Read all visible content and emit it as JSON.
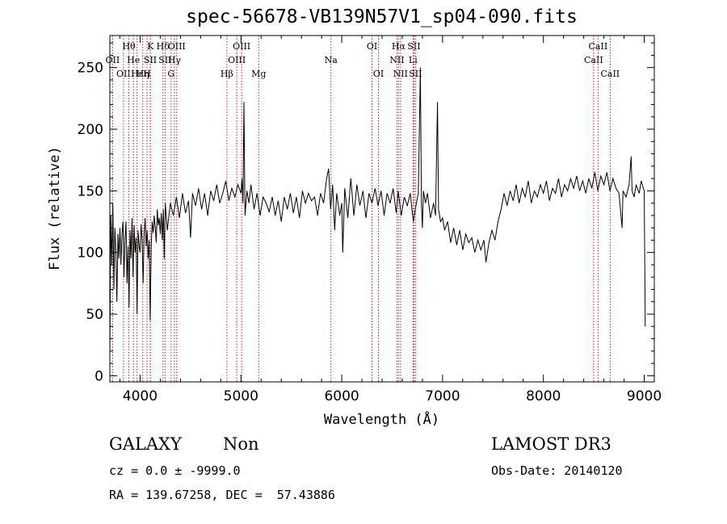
{
  "chart_data": {
    "type": "line",
    "title": "spec-56678-VB139N57V1_sp04-090.fits",
    "xlabel": "Wavelength (Å)",
    "ylabel": "Flux (relative)",
    "xlim": [
      3700,
      9100
    ],
    "ylim": [
      -5,
      276
    ],
    "xticks": [
      4000,
      5000,
      6000,
      7000,
      8000,
      9000
    ],
    "yticks": [
      0,
      50,
      100,
      150,
      200,
      250
    ],
    "line_color": "#000000",
    "marker_color": "#cc2222",
    "series": [
      {
        "values": [
          [
            3700,
            20
          ],
          [
            3710,
            130
          ],
          [
            3720,
            90
          ],
          [
            3730,
            140
          ],
          [
            3740,
            70
          ],
          [
            3750,
            120
          ],
          [
            3760,
            100
          ],
          [
            3770,
            60
          ],
          [
            3780,
            115
          ],
          [
            3790,
            95
          ],
          [
            3800,
            120
          ],
          [
            3810,
            90
          ],
          [
            3820,
            115
          ],
          [
            3830,
            125
          ],
          [
            3840,
            80
          ],
          [
            3850,
            110
          ],
          [
            3860,
            125
          ],
          [
            3870,
            75
          ],
          [
            3880,
            105
          ],
          [
            3890,
            55
          ],
          [
            3900,
            118
          ],
          [
            3910,
            95
          ],
          [
            3920,
            128
          ],
          [
            3930,
            80
          ],
          [
            3940,
            122
          ],
          [
            3950,
            100
          ],
          [
            3960,
            112
          ],
          [
            3970,
            50
          ],
          [
            3980,
            118
          ],
          [
            3990,
            105
          ],
          [
            4000,
            100
          ],
          [
            4010,
            123
          ],
          [
            4020,
            110
          ],
          [
            4030,
            75
          ],
          [
            4040,
            115
          ],
          [
            4050,
            128
          ],
          [
            4060,
            105
          ],
          [
            4070,
            118
          ],
          [
            4080,
            95
          ],
          [
            4090,
            110
          ],
          [
            4100,
            45
          ],
          [
            4110,
            105
          ],
          [
            4120,
            125
          ],
          [
            4130,
            116
          ],
          [
            4140,
            130
          ],
          [
            4150,
            120
          ],
          [
            4160,
            108
          ],
          [
            4170,
            135
          ],
          [
            4180,
            122
          ],
          [
            4190,
            128
          ],
          [
            4200,
            115
          ],
          [
            4210,
            132
          ],
          [
            4220,
            110
          ],
          [
            4230,
            135
          ],
          [
            4240,
            95
          ],
          [
            4250,
            140
          ],
          [
            4270,
            118
          ],
          [
            4300,
            140
          ],
          [
            4330,
            130
          ],
          [
            4360,
            145
          ],
          [
            4390,
            128
          ],
          [
            4420,
            148
          ],
          [
            4450,
            132
          ],
          [
            4480,
            142
          ],
          [
            4500,
            112
          ],
          [
            4520,
            148
          ],
          [
            4550,
            138
          ],
          [
            4580,
            152
          ],
          [
            4610,
            135
          ],
          [
            4640,
            148
          ],
          [
            4670,
            130
          ],
          [
            4700,
            150
          ],
          [
            4730,
            142
          ],
          [
            4760,
            155
          ],
          [
            4790,
            140
          ],
          [
            4820,
            148
          ],
          [
            4850,
            158
          ],
          [
            4880,
            142
          ],
          [
            4910,
            152
          ],
          [
            4940,
            145
          ],
          [
            4970,
            155
          ],
          [
            5000,
            148
          ],
          [
            5010,
            160
          ],
          [
            5020,
            140
          ],
          [
            5030,
            222
          ],
          [
            5040,
            130
          ],
          [
            5060,
            150
          ],
          [
            5080,
            140
          ],
          [
            5100,
            155
          ],
          [
            5130,
            135
          ],
          [
            5160,
            148
          ],
          [
            5190,
            130
          ],
          [
            5220,
            145
          ],
          [
            5250,
            140
          ],
          [
            5280,
            133
          ],
          [
            5310,
            145
          ],
          [
            5340,
            130
          ],
          [
            5370,
            142
          ],
          [
            5400,
            125
          ],
          [
            5430,
            145
          ],
          [
            5460,
            135
          ],
          [
            5490,
            148
          ],
          [
            5520,
            132
          ],
          [
            5550,
            145
          ],
          [
            5580,
            128
          ],
          [
            5610,
            150
          ],
          [
            5640,
            140
          ],
          [
            5670,
            148
          ],
          [
            5700,
            142
          ],
          [
            5730,
            145
          ],
          [
            5760,
            130
          ],
          [
            5790,
            148
          ],
          [
            5820,
            140
          ],
          [
            5850,
            160
          ],
          [
            5870,
            168
          ],
          [
            5890,
            135
          ],
          [
            5910,
            155
          ],
          [
            5930,
            118
          ],
          [
            5950,
            148
          ],
          [
            5980,
            130
          ],
          [
            6000,
            140
          ],
          [
            6010,
            100
          ],
          [
            6030,
            152
          ],
          [
            6060,
            128
          ],
          [
            6090,
            160
          ],
          [
            6120,
            130
          ],
          [
            6150,
            155
          ],
          [
            6180,
            138
          ],
          [
            6210,
            150
          ],
          [
            6240,
            128
          ],
          [
            6270,
            148
          ],
          [
            6300,
            140
          ],
          [
            6330,
            152
          ],
          [
            6360,
            138
          ],
          [
            6390,
            150
          ],
          [
            6420,
            130
          ],
          [
            6450,
            148
          ],
          [
            6480,
            140
          ],
          [
            6510,
            152
          ],
          [
            6540,
            132
          ],
          [
            6560,
            150
          ],
          [
            6590,
            130
          ],
          [
            6620,
            145
          ],
          [
            6650,
            138
          ],
          [
            6680,
            148
          ],
          [
            6710,
            125
          ],
          [
            6740,
            140
          ],
          [
            6760,
            148
          ],
          [
            6780,
            250
          ],
          [
            6790,
            140
          ],
          [
            6800,
            120
          ],
          [
            6810,
            150
          ],
          [
            6820,
            145
          ],
          [
            6830,
            140
          ],
          [
            6850,
            148
          ],
          [
            6880,
            128
          ],
          [
            6910,
            140
          ],
          [
            6930,
            130
          ],
          [
            6950,
            222
          ],
          [
            6960,
            135
          ],
          [
            6980,
            125
          ],
          [
            7000,
            128
          ],
          [
            7020,
            118
          ],
          [
            7050,
            125
          ],
          [
            7080,
            108
          ],
          [
            7110,
            120
          ],
          [
            7140,
            106
          ],
          [
            7170,
            118
          ],
          [
            7200,
            102
          ],
          [
            7230,
            115
          ],
          [
            7260,
            108
          ],
          [
            7290,
            112
          ],
          [
            7320,
            100
          ],
          [
            7350,
            110
          ],
          [
            7380,
            102
          ],
          [
            7410,
            110
          ],
          [
            7430,
            92
          ],
          [
            7460,
            108
          ],
          [
            7490,
            118
          ],
          [
            7520,
            110
          ],
          [
            7550,
            125
          ],
          [
            7580,
            135
          ],
          [
            7610,
            148
          ],
          [
            7640,
            138
          ],
          [
            7670,
            150
          ],
          [
            7700,
            142
          ],
          [
            7730,
            155
          ],
          [
            7760,
            140
          ],
          [
            7790,
            152
          ],
          [
            7820,
            145
          ],
          [
            7850,
            158
          ],
          [
            7880,
            140
          ],
          [
            7910,
            150
          ],
          [
            7940,
            145
          ],
          [
            7970,
            155
          ],
          [
            8000,
            148
          ],
          [
            8030,
            158
          ],
          [
            8060,
            142
          ],
          [
            8090,
            152
          ],
          [
            8120,
            148
          ],
          [
            8150,
            160
          ],
          [
            8180,
            145
          ],
          [
            8210,
            155
          ],
          [
            8240,
            150
          ],
          [
            8270,
            160
          ],
          [
            8300,
            152
          ],
          [
            8330,
            162
          ],
          [
            8360,
            150
          ],
          [
            8390,
            158
          ],
          [
            8420,
            148
          ],
          [
            8450,
            160
          ],
          [
            8480,
            152
          ],
          [
            8510,
            165
          ],
          [
            8540,
            150
          ],
          [
            8570,
            162
          ],
          [
            8600,
            155
          ],
          [
            8630,
            165
          ],
          [
            8660,
            150
          ],
          [
            8690,
            160
          ],
          [
            8720,
            152
          ],
          [
            8750,
            148
          ],
          [
            8780,
            120
          ],
          [
            8790,
            150
          ],
          [
            8820,
            145
          ],
          [
            8850,
            155
          ],
          [
            8870,
            178
          ],
          [
            8880,
            150
          ],
          [
            8900,
            145
          ],
          [
            8920,
            155
          ],
          [
            8950,
            148
          ],
          [
            8970,
            158
          ],
          [
            9000,
            150
          ],
          [
            9010,
            40
          ]
        ]
      }
    ],
    "lines": [
      {
        "w": 3727,
        "label": "OII",
        "row": 2
      },
      {
        "w": 3835,
        "label": "OII",
        "row": 3
      },
      {
        "w": 3889,
        "label": "Hθ",
        "row": 1
      },
      {
        "w": 3934,
        "label": "He",
        "row": 2
      },
      {
        "w": 3970,
        "label": "Hε",
        "row": 3
      },
      {
        "w": 4026,
        "label": "Hη",
        "row": 3
      },
      {
        "w": 4102,
        "label": "K",
        "row": 1
      },
      {
        "w": 4069,
        "label": "H",
        "row": 3
      },
      {
        "w": 4101,
        "label": "SII",
        "row": 2
      },
      {
        "w": 4227,
        "label": "Hδ",
        "row": 1
      },
      {
        "w": 4248,
        "label": "SII",
        "row": 2
      },
      {
        "w": 4307,
        "label": "G",
        "row": 3
      },
      {
        "w": 4340,
        "label": "Hγ",
        "row": 2
      },
      {
        "w": 4363,
        "label": "OIII",
        "row": 1
      },
      {
        "w": 4861,
        "label": "Hβ",
        "row": 3
      },
      {
        "w": 4959,
        "label": "OIII",
        "row": 2
      },
      {
        "w": 5007,
        "label": "OIII",
        "row": 1
      },
      {
        "w": 5176,
        "label": "Mg",
        "row": 3
      },
      {
        "w": 5893,
        "label": "Na",
        "row": 2
      },
      {
        "w": 6300,
        "label": "OI",
        "row": 1
      },
      {
        "w": 6364,
        "label": "OI",
        "row": 3
      },
      {
        "w": 6548,
        "label": "NII",
        "row": 2
      },
      {
        "w": 6563,
        "label": "Hα",
        "row": 1
      },
      {
        "w": 6583,
        "label": "NII",
        "row": 3
      },
      {
        "w": 6707,
        "label": "Li",
        "row": 2
      },
      {
        "w": 6716,
        "label": "SII",
        "row": 1
      },
      {
        "w": 6731,
        "label": "SII",
        "row": 3
      },
      {
        "w": 8498,
        "label": "CaII",
        "row": 2
      },
      {
        "w": 8542,
        "label": "CaII",
        "row": 1
      },
      {
        "w": 8662,
        "label": "CaII",
        "row": 3
      }
    ]
  },
  "info": {
    "class": "GALAXY",
    "subclass": "Non",
    "survey": "LAMOST DR3",
    "cz": "cz = 0.0 ± -9999.0",
    "obs_date": "Obs-Date: 20140120",
    "coords": "RA = 139.67258, DEC =  57.43886"
  }
}
